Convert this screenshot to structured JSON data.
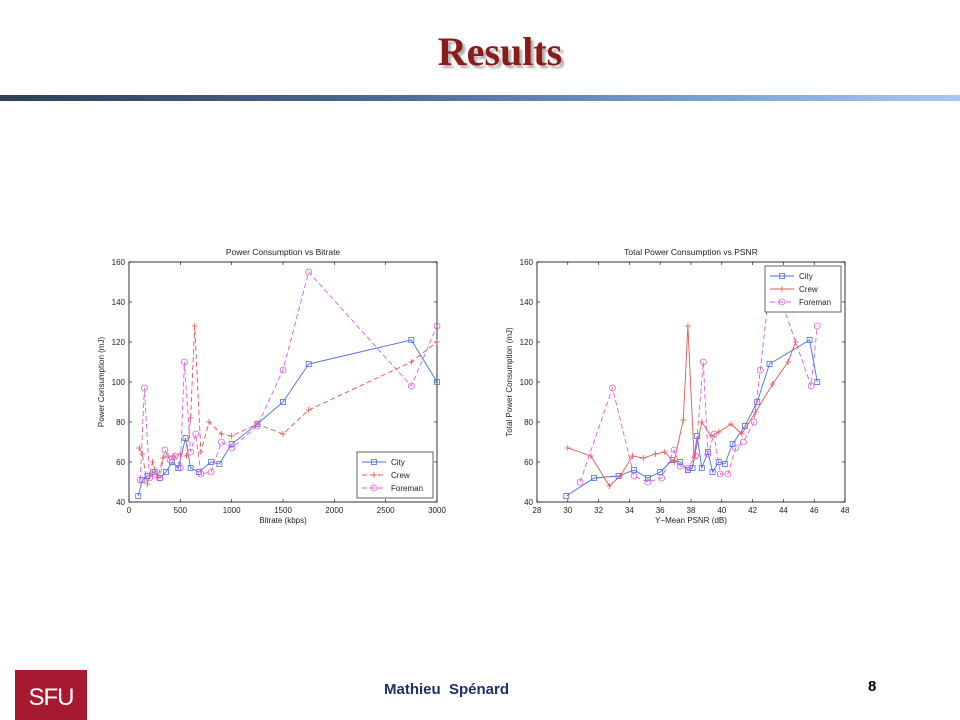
{
  "slide": {
    "title": "Results"
  },
  "footer": {
    "author": "Mathieu  Spénard",
    "page": "8",
    "logo_text": "SFU"
  },
  "colors": {
    "city": "#4a6ee0",
    "crew": "#e8554e",
    "foreman": "#e05ae0",
    "title": "#8b1a1a",
    "logo": "#a6192e"
  },
  "chart_data": [
    {
      "type": "line",
      "title": "Power Consumption vs Bitrate",
      "xlabel": "Bitrate (kbps)",
      "ylabel": "Power Consumption (mJ)",
      "xlim": [
        0,
        3000
      ],
      "ylim": [
        40,
        160
      ],
      "xticks": [
        0,
        500,
        1000,
        1500,
        2000,
        2500,
        3000
      ],
      "yticks": [
        40,
        60,
        80,
        100,
        120,
        140,
        160
      ],
      "legend_position": "bottom-right",
      "grid": false,
      "series": [
        {
          "name": "City",
          "marker": "square",
          "dash": "solid",
          "color": "#4a6ee0",
          "points": [
            [
              90,
              43
            ],
            [
              130,
              51
            ],
            [
              180,
              53
            ],
            [
              250,
              55
            ],
            [
              300,
              52
            ],
            [
              360,
              55
            ],
            [
              420,
              60
            ],
            [
              480,
              57
            ],
            [
              550,
              72
            ],
            [
              600,
              57
            ],
            [
              680,
              55
            ],
            [
              800,
              60
            ],
            [
              880,
              59
            ],
            [
              1000,
              69
            ],
            [
              1250,
              79
            ],
            [
              1500,
              90
            ],
            [
              1750,
              109
            ],
            [
              2750,
              121
            ],
            [
              3000,
              100
            ]
          ]
        },
        {
          "name": "Crew",
          "marker": "plus",
          "dash": "dashed",
          "color": "#e8554e",
          "points": [
            [
              100,
              67
            ],
            [
              130,
              64
            ],
            [
              180,
              49
            ],
            [
              230,
              60
            ],
            [
              280,
              52
            ],
            [
              330,
              62
            ],
            [
              380,
              63
            ],
            [
              440,
              63
            ],
            [
              500,
              64
            ],
            [
              560,
              63
            ],
            [
              600,
              82
            ],
            [
              640,
              128
            ],
            [
              700,
              65
            ],
            [
              780,
              80
            ],
            [
              900,
              74
            ],
            [
              1000,
              73
            ],
            [
              1250,
              79
            ],
            [
              1500,
              74
            ],
            [
              1750,
              86
            ],
            [
              2750,
              110
            ],
            [
              3000,
              120
            ]
          ]
        },
        {
          "name": "Foreman",
          "marker": "circle",
          "dash": "dashed",
          "color": "#e05ae0",
          "points": [
            [
              110,
              51
            ],
            [
              150,
              97
            ],
            [
              200,
              52
            ],
            [
              250,
              54
            ],
            [
              300,
              52
            ],
            [
              350,
              66
            ],
            [
              400,
              61
            ],
            [
              450,
              63
            ],
            [
              500,
              57
            ],
            [
              540,
              110
            ],
            [
              600,
              65
            ],
            [
              650,
              74
            ],
            [
              700,
              54
            ],
            [
              800,
              55
            ],
            [
              900,
              70
            ],
            [
              1000,
              67
            ],
            [
              1250,
              78
            ],
            [
              1500,
              106
            ],
            [
              1750,
              155
            ],
            [
              2750,
              98
            ],
            [
              3000,
              128
            ]
          ]
        }
      ]
    },
    {
      "type": "line",
      "title": "Total Power Consumption vs PSNR",
      "xlabel": "Y−Mean PSNR (dB)",
      "ylabel": "Total Power Consumption (mJ)",
      "xlim": [
        28,
        48
      ],
      "ylim": [
        40,
        160
      ],
      "xticks": [
        28,
        30,
        32,
        34,
        36,
        38,
        40,
        42,
        44,
        46,
        48
      ],
      "yticks": [
        40,
        60,
        80,
        100,
        120,
        140,
        160
      ],
      "legend_position": "top-right",
      "grid": false,
      "series": [
        {
          "name": "City",
          "marker": "square",
          "dash": "solid",
          "color": "#4a6ee0",
          "points": [
            [
              29.9,
              43
            ],
            [
              31.7,
              52
            ],
            [
              33.3,
              53
            ],
            [
              34.3,
              56
            ],
            [
              35.2,
              52
            ],
            [
              36.0,
              55
            ],
            [
              36.8,
              61
            ],
            [
              37.3,
              60
            ],
            [
              37.8,
              56
            ],
            [
              38.1,
              57
            ],
            [
              38.4,
              73
            ],
            [
              38.7,
              57
            ],
            [
              39.1,
              65
            ],
            [
              39.4,
              55
            ],
            [
              39.8,
              60
            ],
            [
              40.2,
              59
            ],
            [
              40.7,
              69
            ],
            [
              41.5,
              78
            ],
            [
              42.3,
              90
            ],
            [
              43.1,
              109
            ],
            [
              45.7,
              121
            ],
            [
              46.2,
              100
            ]
          ]
        },
        {
          "name": "Crew",
          "marker": "plus",
          "dash": "solid",
          "color": "#e8554e",
          "points": [
            [
              30.0,
              67
            ],
            [
              31.5,
              63
            ],
            [
              32.7,
              48
            ],
            [
              33.4,
              53
            ],
            [
              34.2,
              63
            ],
            [
              34.9,
              62
            ],
            [
              35.7,
              64
            ],
            [
              36.3,
              65
            ],
            [
              36.9,
              60
            ],
            [
              37.5,
              81
            ],
            [
              37.8,
              128
            ],
            [
              38.2,
              62
            ],
            [
              38.7,
              80
            ],
            [
              39.3,
              73
            ],
            [
              39.8,
              75
            ],
            [
              40.6,
              79
            ],
            [
              41.3,
              74
            ],
            [
              42.2,
              85
            ],
            [
              43.3,
              99
            ],
            [
              44.3,
              110
            ],
            [
              44.8,
              120
            ]
          ]
        },
        {
          "name": "Foreman",
          "marker": "circle",
          "dash": "dashed",
          "color": "#e05ae0",
          "points": [
            [
              30.8,
              50
            ],
            [
              32.9,
              97
            ],
            [
              34.3,
              53
            ],
            [
              35.2,
              50
            ],
            [
              36.1,
              52
            ],
            [
              36.9,
              66
            ],
            [
              37.3,
              58
            ],
            [
              37.8,
              57
            ],
            [
              38.3,
              63
            ],
            [
              38.8,
              110
            ],
            [
              39.1,
              64
            ],
            [
              39.5,
              74
            ],
            [
              39.9,
              54
            ],
            [
              40.4,
              54
            ],
            [
              40.9,
              67
            ],
            [
              41.4,
              70
            ],
            [
              42.1,
              80
            ],
            [
              42.5,
              106
            ],
            [
              43.2,
              155
            ],
            [
              45.8,
              98
            ],
            [
              46.2,
              128
            ]
          ]
        }
      ]
    }
  ]
}
